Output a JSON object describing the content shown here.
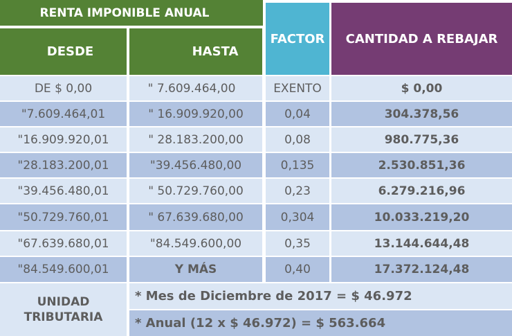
{
  "header": {
    "renta_title": "RENTA IMPONIBLE ANUAL",
    "desde": "DESDE",
    "hasta": "HASTA",
    "factor": "FACTOR",
    "cantidad": "CANTIDAD A REBAJAR"
  },
  "rows": [
    {
      "desde": "DE $ 0,00",
      "hasta": "\" 7.609.464,00",
      "factor": "EXENTO",
      "cantidad": "$ 0,00"
    },
    {
      "desde": "\"7.609.464,01",
      "hasta": "\" 16.909.920,00",
      "factor": "0,04",
      "cantidad": "304.378,56"
    },
    {
      "desde": "\"16.909.920,01",
      "hasta": "\" 28.183.200,00",
      "factor": "0,08",
      "cantidad": "980.775,36"
    },
    {
      "desde": "\"28.183.200,01",
      "hasta": "\"39.456.480,00",
      "factor": "0,135",
      "cantidad": "2.530.851,36"
    },
    {
      "desde": "\"39.456.480,01",
      "hasta": "\" 50.729.760,00",
      "factor": "0,23",
      "cantidad": "6.279.216,96"
    },
    {
      "desde": "\"50.729.760,01",
      "hasta": "\" 67.639.680,00",
      "factor": "0,304",
      "cantidad": "10.033.219,20"
    },
    {
      "desde": "\"67.639.680,01",
      "hasta": "\"84.549.600,00",
      "factor": "0,35",
      "cantidad": "13.144.644,48"
    },
    {
      "desde": "\"84.549.600,01",
      "hasta": "Y MÁS",
      "factor": "0,40",
      "cantidad": "17.372.124,48"
    }
  ],
  "footer": {
    "unidad_line1": "UNIDAD",
    "unidad_line2": "TRIBUTARIA",
    "mes": "* Mes de Diciembre de 2017 = $ 46.972",
    "anual": "* Anual (12 x $ 46.972) = $ 563.664"
  }
}
